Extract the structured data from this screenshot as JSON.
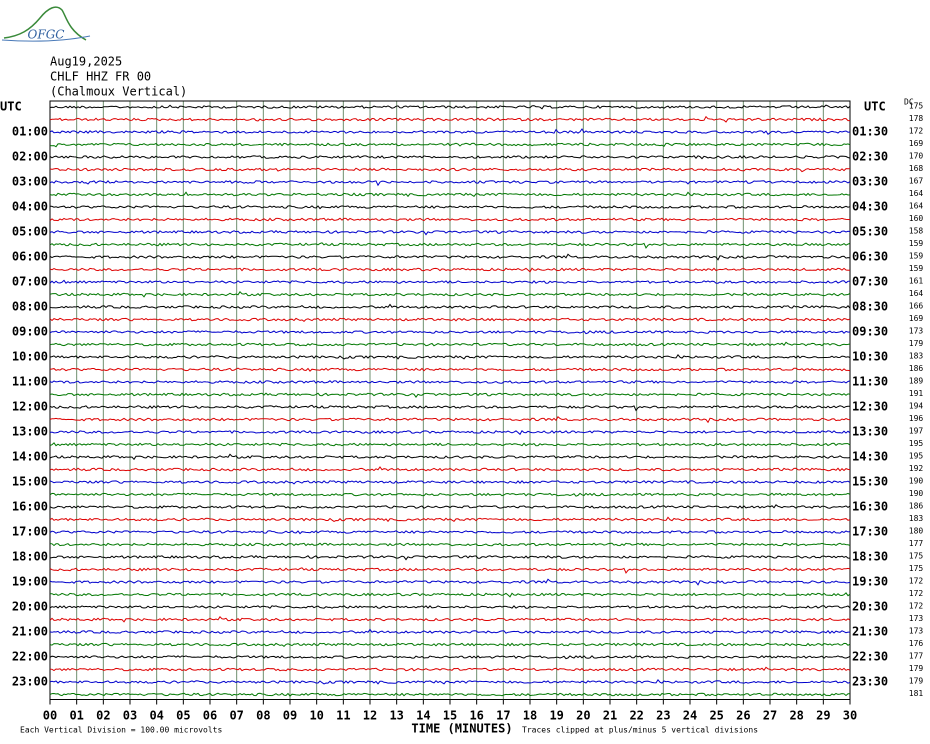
{
  "chart_data": {
    "type": "helicorder",
    "logo": "OFGC",
    "title_lines": [
      "Aug19,2025",
      "CHLF HHZ FR 00",
      "(Chalmoux Vertical)"
    ],
    "x_label": "TIME (MINUTES)",
    "footer_left": "Each Vertical Division =  100.00 microvolts",
    "footer_right": "Traces clipped at plus/minus 5 vertical divisions",
    "dc_header": "DC",
    "xlim": [
      0,
      30
    ],
    "xticks": [
      {
        "value": 0,
        "label": "00"
      },
      {
        "value": 1,
        "label": "01"
      },
      {
        "value": 2,
        "label": "02"
      },
      {
        "value": 3,
        "label": "03"
      },
      {
        "value": 4,
        "label": "04"
      },
      {
        "value": 5,
        "label": "05"
      },
      {
        "value": 6,
        "label": "06"
      },
      {
        "value": 7,
        "label": "07"
      },
      {
        "value": 8,
        "label": "08"
      },
      {
        "value": 9,
        "label": "09"
      },
      10,
      11,
      12,
      13,
      14,
      15,
      16,
      17,
      18,
      19,
      20,
      21,
      22,
      23,
      24,
      25,
      26,
      27,
      28,
      29,
      30
    ],
    "grid": true,
    "trace_colors": [
      "#000000",
      "#dd0000",
      "#0000cc",
      "#007700"
    ],
    "left_labels": [
      "UTC",
      "01:00",
      "02:00",
      "03:00",
      "04:00",
      "05:00",
      "06:00",
      "07:00",
      "08:00",
      "09:00",
      "10:00",
      "11:00",
      "12:00",
      "13:00",
      "14:00",
      "15:00",
      "16:00",
      "17:00",
      "18:00",
      "19:00",
      "20:00",
      "21:00",
      "22:00",
      "23:00"
    ],
    "right_labels": [
      "UTC",
      "01:30",
      "02:30",
      "03:30",
      "04:30",
      "05:30",
      "06:30",
      "07:30",
      "08:30",
      "09:30",
      "10:30",
      "11:30",
      "12:30",
      "13:30",
      "14:30",
      "15:30",
      "16:30",
      "17:30",
      "18:30",
      "19:30",
      "20:30",
      "21:30",
      "22:30",
      "23:30"
    ],
    "dc_offsets": [
      175,
      178,
      172,
      169,
      170,
      168,
      167,
      164,
      164,
      160,
      158,
      159,
      159,
      159,
      161,
      164,
      166,
      169,
      173,
      179,
      183,
      186,
      189,
      191,
      194,
      196,
      197,
      195,
      195,
      192,
      190,
      190,
      186,
      183,
      180,
      177,
      175,
      175,
      172,
      172,
      172,
      173,
      173,
      176,
      177,
      179,
      179,
      181
    ]
  }
}
